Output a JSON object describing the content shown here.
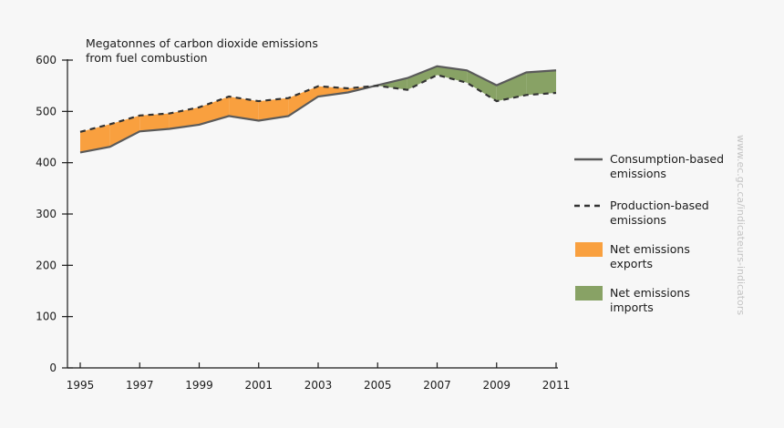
{
  "chart_data": {
    "type": "line",
    "title": "Megatonnes of carbon dioxide emissions from fuel combustion",
    "title_lines": [
      "Megatonnes of carbon dioxide emissions",
      "from fuel combustion"
    ],
    "x": [
      1995,
      1996,
      1997,
      1998,
      1999,
      2000,
      2001,
      2002,
      2003,
      2004,
      2005,
      2006,
      2007,
      2008,
      2009,
      2010,
      2011
    ],
    "x_tick_labels": [
      "1995",
      "1997",
      "1999",
      "2001",
      "2003",
      "2005",
      "2007",
      "2009",
      "2011"
    ],
    "y_tick_labels": [
      "0",
      "100",
      "200",
      "300",
      "400",
      "500",
      "600"
    ],
    "ylim": [
      0,
      600
    ],
    "grid": false,
    "series": [
      {
        "name": "Consumption-based emissions",
        "style": "solid",
        "color": "#5a5a5a",
        "values": [
          420,
          431,
          461,
          466,
          474,
          491,
          482,
          491,
          529,
          537,
          551,
          565,
          588,
          580,
          551,
          576,
          580
        ]
      },
      {
        "name": "Production-based emissions",
        "style": "dashed",
        "color": "#333333",
        "values": [
          460,
          475,
          492,
          496,
          508,
          529,
          520,
          526,
          549,
          545,
          550,
          542,
          571,
          556,
          520,
          532,
          536
        ]
      }
    ],
    "areas": [
      {
        "name": "Net emissions exports",
        "color": "#f9a03f"
      },
      {
        "name": "Net emissions imports",
        "color": "#88a265"
      }
    ],
    "legend": {
      "placement": "right",
      "items": [
        {
          "lines": [
            "Consumption-based",
            "emissions"
          ]
        },
        {
          "lines": [
            "Production-based",
            "emissions"
          ]
        },
        {
          "lines": [
            "Net emissions",
            "exports"
          ]
        },
        {
          "lines": [
            "Net emissions",
            "imports"
          ]
        }
      ]
    },
    "watermark": "www.ec.gc.ca/indicateurs-indicators"
  }
}
